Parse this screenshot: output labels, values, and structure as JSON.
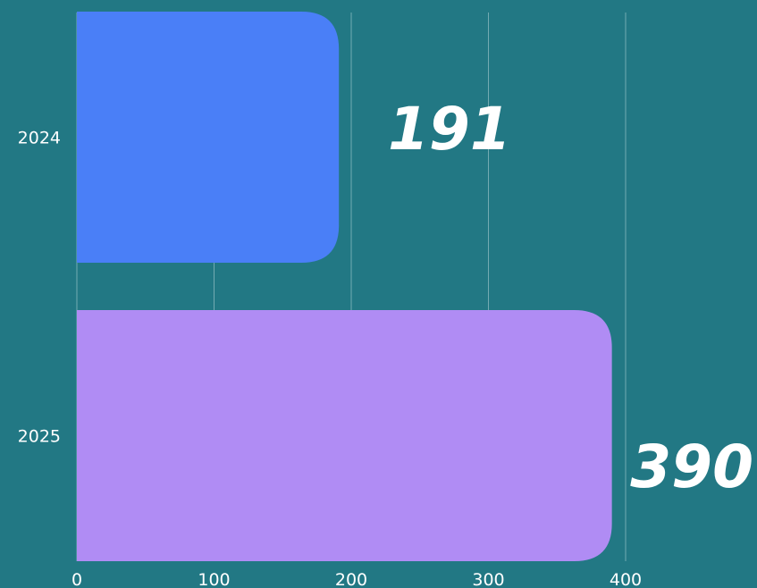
{
  "colors": {
    "background": "#227884",
    "grid": "#8fbcc2",
    "text": "#ffffff"
  },
  "chart_data": {
    "type": "bar",
    "orientation": "horizontal",
    "title": "",
    "xlabel": "",
    "ylabel": "",
    "categories": [
      "2024",
      "2025"
    ],
    "series": [
      {
        "values": [
          191,
          390
        ],
        "colors": [
          "#4a7ff7",
          "#b08cf4"
        ]
      }
    ],
    "xlim": [
      0,
      400
    ],
    "xticks": [
      "0",
      "100",
      "200",
      "300",
      "400"
    ],
    "data_labels": [
      "191",
      "390"
    ],
    "grid": true,
    "legend": "none"
  }
}
